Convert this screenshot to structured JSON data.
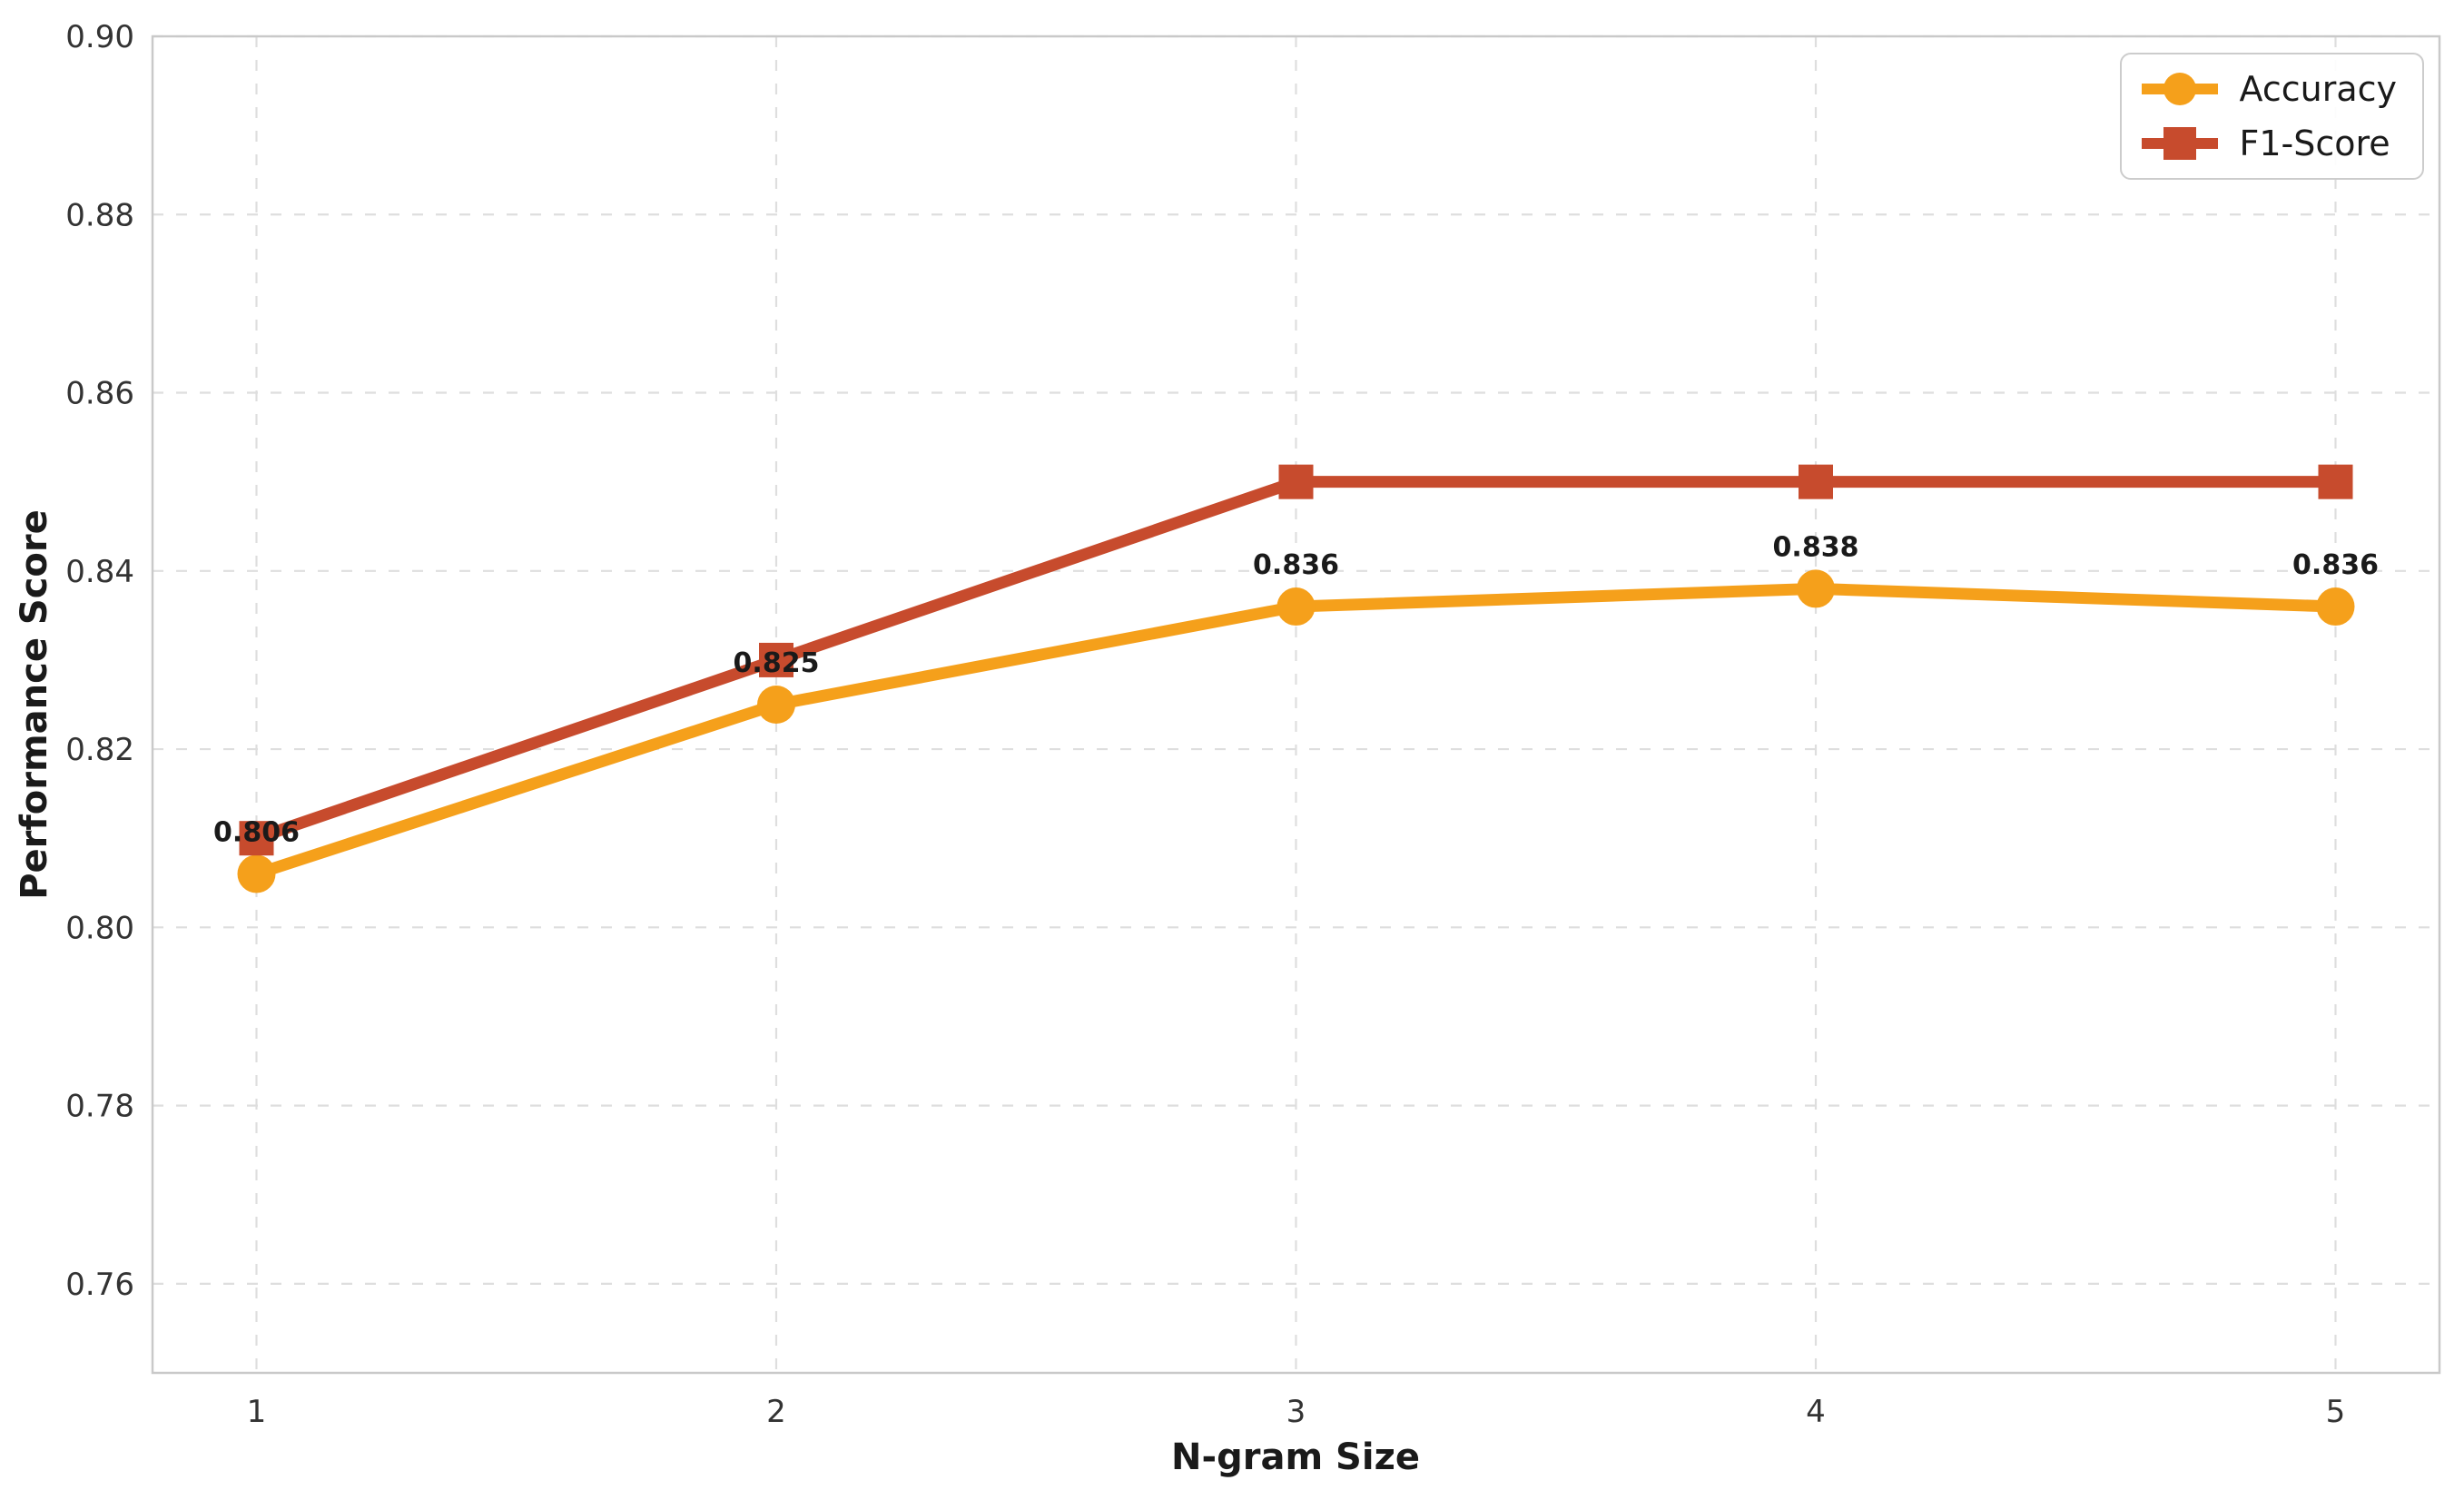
{
  "chart_data": {
    "type": "line",
    "title": "",
    "xlabel": "N-gram Size",
    "ylabel": "Performance Score",
    "x": [
      1,
      2,
      3,
      4,
      5
    ],
    "xlim": [
      0.8,
      5.2
    ],
    "ylim": [
      0.75,
      0.9
    ],
    "xtick_labels": [
      "1",
      "2",
      "3",
      "4",
      "5"
    ],
    "ytick_labels": [
      "0.76",
      "0.78",
      "0.80",
      "0.82",
      "0.84",
      "0.86",
      "0.88",
      "0.90"
    ],
    "grid": true,
    "grid_style": "dashed",
    "legend_position": "top-right",
    "series": [
      {
        "name": "Accuracy",
        "marker": "circle",
        "color": "#F5A01B",
        "values": [
          0.806,
          0.825,
          0.836,
          0.838,
          0.836
        ],
        "point_labels": [
          "0.806",
          "0.825",
          "0.836",
          "0.838",
          "0.836"
        ]
      },
      {
        "name": "F1-Score",
        "marker": "square",
        "color": "#C74B2D",
        "values": [
          0.81,
          0.83,
          0.85,
          0.85,
          0.85
        ],
        "point_labels": null
      }
    ]
  },
  "colors": {
    "grid": "#dedede",
    "spine": "#c9c9c9",
    "tick_text": "#333333",
    "label_text": "#1a1a1a",
    "background": "#ffffff"
  }
}
